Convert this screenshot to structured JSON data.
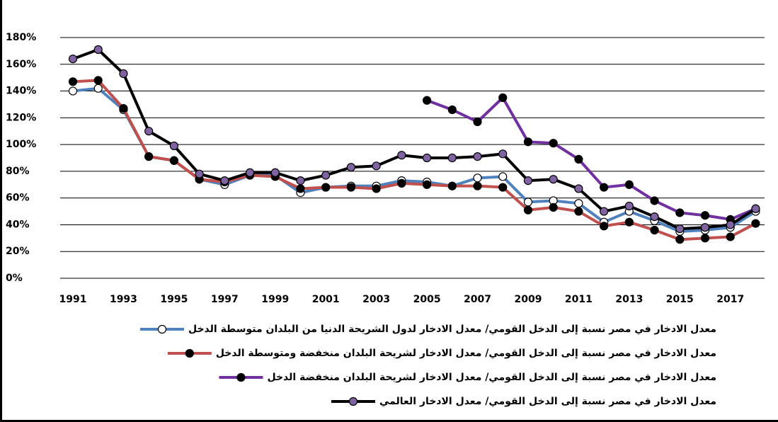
{
  "chart_data": {
    "type": "line",
    "categories": [
      "1991",
      null,
      "1993",
      null,
      "1995",
      null,
      "1997",
      null,
      "1999",
      null,
      "2001",
      null,
      "2003",
      null,
      "2005",
      null,
      "2007",
      null,
      "2009",
      null,
      "2011",
      null,
      "2013",
      null,
      "2015",
      null,
      "2017",
      null
    ],
    "ylim": [
      0,
      180
    ],
    "yticks": [
      {
        "value": 0,
        "label": "0%"
      },
      {
        "value": 20,
        "label": "20%"
      },
      {
        "value": 40,
        "label": "40%"
      },
      {
        "value": 60,
        "label": "60%"
      },
      {
        "value": 80,
        "label": "80%"
      },
      {
        "value": 100,
        "label": "100%"
      },
      {
        "value": 120,
        "label": "120%"
      },
      {
        "value": 140,
        "label": "140%"
      },
      {
        "value": 160,
        "label": "160%"
      },
      {
        "value": 180,
        "label": "180%"
      }
    ],
    "grid": true,
    "legend": "bottom",
    "series": [
      {
        "name": "معدل الادخار في مصر نسبة إلى الدخل القومي/ معدل الادخار لدول الشريحة الدنيا من البلدان متوسطة الدخل",
        "color": "#4f81bd",
        "marker_color": "#ffffff",
        "values": [
          140,
          142,
          126,
          91,
          88,
          74,
          70,
          77,
          77,
          64,
          68,
          69,
          69,
          73,
          72,
          69,
          75,
          76,
          57,
          58,
          56,
          42,
          50,
          43,
          35,
          36,
          38,
          50
        ]
      },
      {
        "name": "معدل الادخار في مصر نسبة إلى الدخل القومي/ معدل الادخار لشريحة البلدان منخفضة ومتوسطة الدخل",
        "color": "#c0504d",
        "marker_color": "#000000",
        "values": [
          147,
          148,
          127,
          91,
          88,
          74,
          72,
          77,
          76,
          67,
          68,
          68,
          67,
          71,
          70,
          69,
          69,
          68,
          51,
          53,
          50,
          39,
          42,
          36,
          29,
          30,
          31,
          41
        ]
      },
      {
        "name": "معدل الادخار في مصر نسبة إلى الدخل القومي/ معدل الادخار لشريحة البلدان منخفضة الدخل",
        "color": "#7030a0",
        "marker_color": "#000000",
        "values": [
          null,
          null,
          null,
          null,
          null,
          null,
          null,
          null,
          null,
          null,
          null,
          null,
          null,
          null,
          133,
          126,
          117,
          135,
          102,
          101,
          89,
          68,
          70,
          58,
          49,
          47,
          44,
          52
        ]
      },
      {
        "name": "معدل الادخار في مصر نسبة إلى الدخل القومي/ معدل الادخار العالمي",
        "color": "#000000",
        "marker_color": "#8064a2",
        "values": [
          164,
          171,
          153,
          110,
          99,
          78,
          73,
          79,
          79,
          73,
          77,
          83,
          84,
          92,
          90,
          90,
          91,
          93,
          73,
          74,
          67,
          50,
          54,
          46,
          37,
          38,
          40,
          52
        ]
      }
    ]
  }
}
